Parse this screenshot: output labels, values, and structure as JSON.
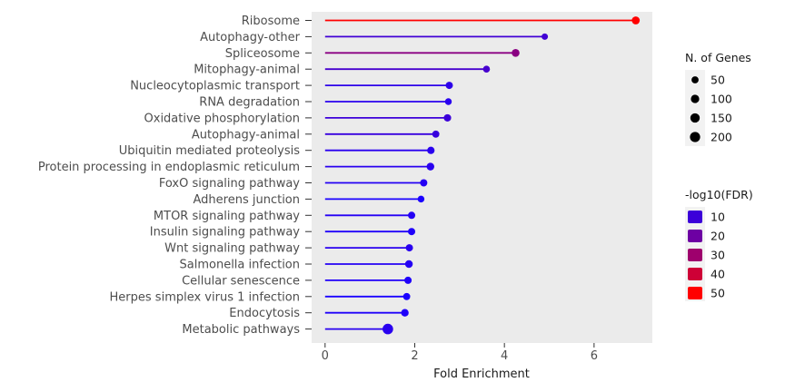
{
  "chart_data": {
    "type": "lollipop",
    "xlabel": "Fold Enrichment",
    "ylabel": "",
    "xlim": [
      -0.3,
      7.3
    ],
    "xticks": [
      0,
      2,
      4,
      6
    ],
    "grid": false,
    "background": "#ebebeb",
    "categories": [
      "Ribosome",
      "Autophagy-other",
      "Spliceosome",
      "Mitophagy-animal",
      "Nucleocytoplasmic transport",
      "RNA degradation",
      "Oxidative phosphorylation",
      "Autophagy-animal",
      "Ubiquitin mediated proteolysis",
      "Protein processing in endoplasmic reticulum",
      "FoxO signaling pathway",
      "Adherens junction",
      "MTOR signaling pathway",
      "Insulin signaling pathway",
      "Wnt signaling pathway",
      "Salmonella infection",
      "Cellular senescence",
      "Herpes simplex virus 1 infection",
      "Endocytosis",
      "Metabolic pathways"
    ],
    "fold_enrichment": [
      6.93,
      4.9,
      4.25,
      3.6,
      2.77,
      2.75,
      2.73,
      2.47,
      2.36,
      2.35,
      2.2,
      2.14,
      1.93,
      1.93,
      1.88,
      1.87,
      1.85,
      1.82,
      1.78,
      1.4
    ],
    "n_genes": [
      80,
      30,
      75,
      45,
      55,
      40,
      60,
      50,
      60,
      70,
      55,
      40,
      55,
      55,
      55,
      70,
      55,
      50,
      65,
      220
    ],
    "neg_log10_fdr": [
      50,
      11,
      26,
      12,
      7,
      6,
      10,
      9,
      6,
      6,
      5,
      3,
      5,
      4,
      6,
      5,
      4,
      3,
      4,
      6
    ],
    "legends": {
      "size": {
        "title": "N. of Genes",
        "entries": [
          "50",
          "100",
          "150",
          "200"
        ],
        "values": [
          50,
          100,
          150,
          200
        ]
      },
      "color": {
        "title": "-log10(FDR)",
        "entries": [
          "10",
          "20",
          "30",
          "40",
          "50"
        ],
        "values": [
          10,
          20,
          30,
          40,
          50
        ],
        "low_color": "#1a00ff",
        "high_color": "#ff0000"
      }
    }
  }
}
